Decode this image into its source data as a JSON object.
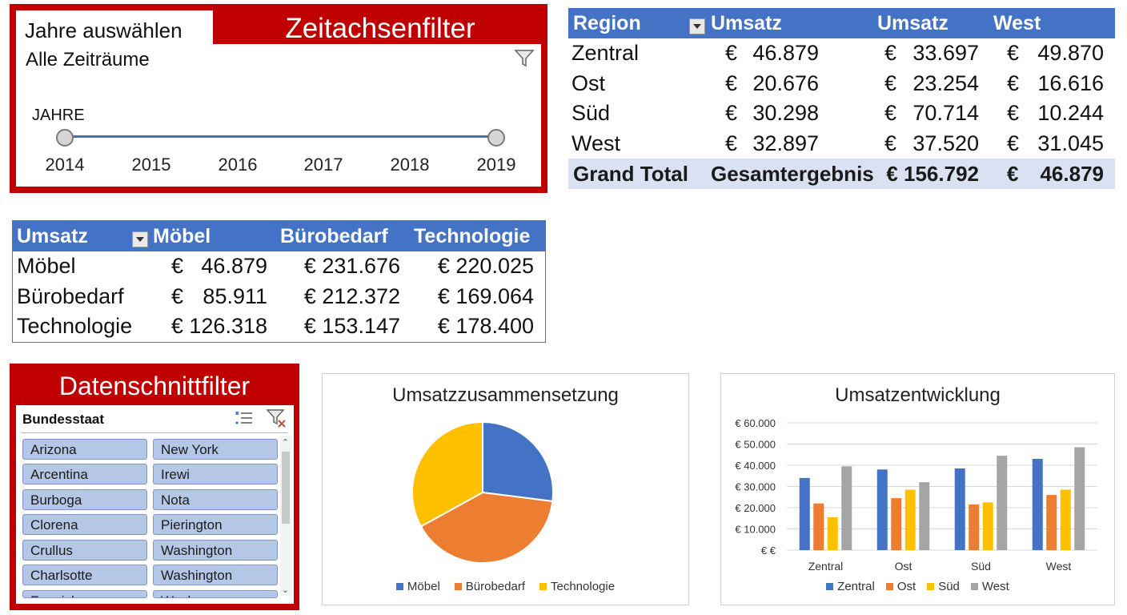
{
  "timeline": {
    "tab_label": "Jahre auswählen",
    "title": "Zeitachsenfilter",
    "all_periods": "Alle Zeiträume",
    "level_label": "JAHRE",
    "years": [
      "2014",
      "2015",
      "2016",
      "2017",
      "2018",
      "2019"
    ],
    "filter_icon": "funnel-icon"
  },
  "region_pivot": {
    "headers": [
      "Region",
      "Umsatz",
      "Umsatz",
      "West"
    ],
    "rows": [
      {
        "label": "Zentral",
        "c1": "46.879",
        "c2": "33.697",
        "c3": "49.870"
      },
      {
        "label": "Ost",
        "c1": "20.676",
        "c2": "23.254",
        "c3": "16.616"
      },
      {
        "label": "Süd",
        "c1": "30.298",
        "c2": "70.714",
        "c3": "10.244"
      },
      {
        "label": "West",
        "c1": "32.897",
        "c2": "37.520",
        "c3": "31.045"
      }
    ],
    "total": {
      "label": "Grand Total",
      "c1": "Gesamtergebnis",
      "c2": "€ 156.792",
      "c3": "46.879"
    },
    "currency": "€"
  },
  "category_pivot": {
    "headers": [
      "Umsatz",
      "Möbel",
      "Bürobedarf",
      "Technologie"
    ],
    "rows": [
      {
        "label": "Möbel",
        "c1": "46.879",
        "c2": "€ 231.676",
        "c3": "€ 220.025"
      },
      {
        "label": "Bürobedarf",
        "c1": "85.911",
        "c2": "€ 212.372",
        "c3": "€ 169.064"
      },
      {
        "label": "Technologie",
        "c1": "€ 126.318",
        "c2": "€ 153.147",
        "c3": "€ 178.400"
      }
    ],
    "currency": "€"
  },
  "slicer": {
    "title": "Datenschnittfilter",
    "header": "Bundesstaat",
    "items_left": [
      "Arizona",
      "Arcentina",
      "Burboga",
      "Clorena",
      "Crullus",
      "Charlsotte",
      "Fennick"
    ],
    "items_right": [
      "New York",
      "Irewi",
      "Nota",
      "Pierington",
      "Washington",
      "Washington",
      "Washn"
    ]
  },
  "colors": {
    "red_frame": "#c00000",
    "pivot_header": "#4472c4",
    "pivot_total": "#d9e1f2",
    "slicer_item": "#b4c7e7",
    "series_blue": "#4472c4",
    "series_orange": "#ed7d31",
    "series_yellow": "#ffc000",
    "series_gray": "#a5a5a5"
  },
  "chart_data": [
    {
      "type": "pie",
      "title": "Umsatzzusammensetzung",
      "categories": [
        "Möbel",
        "Bürobedarf",
        "Technologie"
      ],
      "values": [
        27,
        40,
        33
      ],
      "legend": "bottom"
    },
    {
      "type": "bar",
      "title": "Umsatzentwicklung",
      "categories": [
        "Zentral",
        "Ost",
        "Süd",
        "West"
      ],
      "series": [
        {
          "name": "Zentral",
          "values": [
            34000,
            38000,
            38500,
            43000
          ]
        },
        {
          "name": "Ost",
          "values": [
            22000,
            24500,
            21500,
            26000
          ]
        },
        {
          "name": "Süd",
          "values": [
            15500,
            28500,
            22500,
            28500
          ]
        },
        {
          "name": "West",
          "values": [
            39500,
            32000,
            44500,
            48500
          ]
        }
      ],
      "ylim": [
        0,
        60000
      ],
      "yticks": [
        "€ €",
        "€ 10.000",
        "€ 20.000",
        "€ 30.000",
        "€ 40.000",
        "€ 50.000",
        "€ 60.000"
      ],
      "grid": true,
      "legend": "bottom"
    }
  ]
}
